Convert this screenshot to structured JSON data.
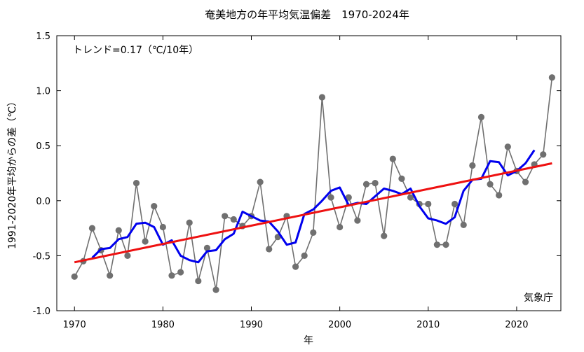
{
  "chart_data": {
    "type": "line",
    "title": "奄美地方の年平均気温偏差　1970-2024年",
    "xlabel": "年",
    "ylabel": "1991-2020年平均からの差（℃）",
    "annotation_trend": "トレンド=0.17（℃/10年）",
    "source": "気象庁",
    "xlim": [
      1968,
      2025
    ],
    "ylim": [
      -1.0,
      1.5
    ],
    "x_ticks": [
      1970,
      1980,
      1990,
      2000,
      2010,
      2020
    ],
    "x_tick_labels": [
      "1970",
      "1980",
      "1990",
      "2000",
      "2010",
      "2020"
    ],
    "y_ticks": [
      -1.0,
      -0.5,
      0.0,
      0.5,
      1.0,
      1.5
    ],
    "y_tick_labels": [
      "-1.0",
      "-0.5",
      "0.0",
      "0.5",
      "1.0",
      "1.5"
    ],
    "grid": false,
    "colors": {
      "annual": "#707070",
      "moving_average": "#0000ee",
      "trend": "#ee1111"
    },
    "series": [
      {
        "role": "annual",
        "x": [
          1970,
          1971,
          1972,
          1973,
          1974,
          1975,
          1976,
          1977,
          1978,
          1979,
          1980,
          1981,
          1982,
          1983,
          1984,
          1985,
          1986,
          1987,
          1988,
          1989,
          1990,
          1991,
          1992,
          1993,
          1994,
          1995,
          1996,
          1997,
          1998,
          1999,
          2000,
          2001,
          2002,
          2003,
          2004,
          2005,
          2006,
          2007,
          2008,
          2009,
          2010,
          2011,
          2012,
          2013,
          2014,
          2015,
          2016,
          2017,
          2018,
          2019,
          2020,
          2021,
          2022,
          2023,
          2024
        ],
        "values": [
          -0.69,
          -0.55,
          -0.25,
          -0.45,
          -0.68,
          -0.27,
          -0.5,
          0.16,
          -0.37,
          -0.05,
          -0.24,
          -0.68,
          -0.65,
          -0.2,
          -0.73,
          -0.43,
          -0.81,
          -0.14,
          -0.17,
          -0.23,
          -0.14,
          0.17,
          -0.44,
          -0.33,
          -0.14,
          -0.6,
          -0.5,
          -0.29,
          0.94,
          0.03,
          -0.24,
          0.03,
          -0.18,
          0.15,
          0.16,
          -0.32,
          0.38,
          0.2,
          0.03,
          -0.03,
          -0.03,
          -0.4,
          -0.4,
          -0.03,
          -0.22,
          0.32,
          0.76,
          0.15,
          0.05,
          0.49,
          0.27,
          0.17,
          0.33,
          0.42,
          1.12
        ]
      },
      {
        "role": "moving_average",
        "x": [
          1972,
          1973,
          1974,
          1975,
          1976,
          1977,
          1978,
          1979,
          1980,
          1981,
          1982,
          1983,
          1984,
          1985,
          1986,
          1987,
          1988,
          1989,
          1990,
          1991,
          1992,
          1993,
          1994,
          1995,
          1996,
          1997,
          1998,
          1999,
          2000,
          2001,
          2002,
          2003,
          2004,
          2005,
          2006,
          2007,
          2008,
          2009,
          2010,
          2011,
          2012,
          2013,
          2014,
          2015,
          2016,
          2017,
          2018,
          2019,
          2020,
          2021,
          2022
        ],
        "values": [
          -0.52,
          -0.44,
          -0.43,
          -0.35,
          -0.33,
          -0.21,
          -0.2,
          -0.24,
          -0.4,
          -0.36,
          -0.5,
          -0.54,
          -0.56,
          -0.46,
          -0.45,
          -0.35,
          -0.3,
          -0.1,
          -0.14,
          -0.18,
          -0.19,
          -0.28,
          -0.4,
          -0.38,
          -0.12,
          -0.08,
          0.0,
          0.09,
          0.12,
          -0.04,
          -0.02,
          -0.03,
          0.04,
          0.11,
          0.09,
          0.06,
          0.11,
          -0.05,
          -0.16,
          -0.18,
          -0.21,
          -0.15,
          0.09,
          0.19,
          0.2,
          0.36,
          0.35,
          0.23,
          0.27,
          0.34,
          0.46
        ]
      },
      {
        "role": "trend",
        "x": [
          1970,
          2024
        ],
        "values": [
          -0.56,
          0.34
        ]
      }
    ]
  }
}
